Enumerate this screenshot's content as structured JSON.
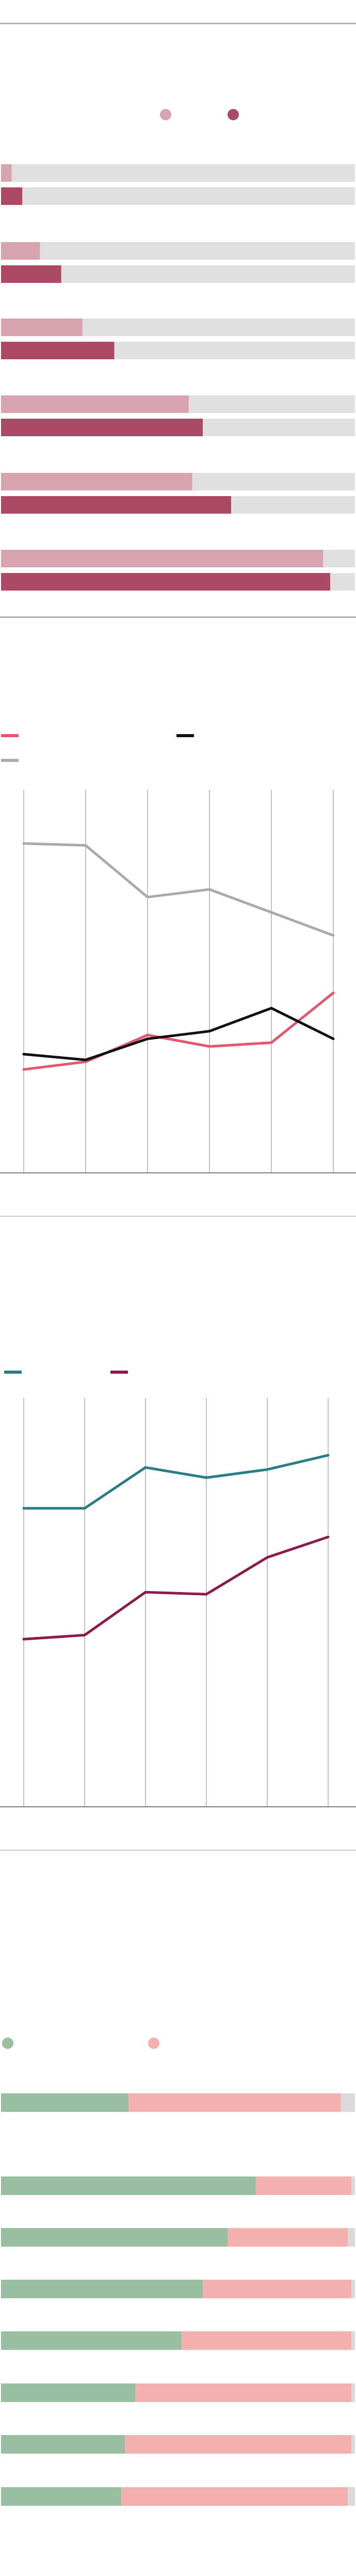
{
  "colors": {
    "light_pink": "#d6a3ae",
    "dark_pink": "#ac4a65",
    "track": "#e0e0e0",
    "red": "#e4566b",
    "black": "#111111",
    "gray": "#aaaaaa",
    "teal": "#2a7d84",
    "maroon": "#8b1b4a",
    "green": "#99bfa3",
    "salmon": "#f4b0ae",
    "light_gray": "#dadada",
    "grid": "#999999"
  },
  "chart_data": [
    {
      "type": "bar",
      "orientation": "horizontal",
      "legend": {
        "placement": "top-center",
        "markers": [
          "circle",
          "circle"
        ]
      },
      "series": [
        {
          "color": "#d6a3ae",
          "values": [
            3,
            11,
            23,
            53,
            54,
            91
          ]
        },
        {
          "color": "#ac4a65",
          "values": [
            6,
            17,
            32,
            57,
            65,
            93
          ]
        }
      ],
      "xlim": [
        0,
        100
      ],
      "grid": false
    },
    {
      "type": "line",
      "legend": {
        "placement": "top-left"
      },
      "x": [
        0,
        1,
        2,
        3,
        4,
        5
      ],
      "series": [
        {
          "color": "#e4566b",
          "values": [
            27,
            29,
            36,
            33,
            34,
            47
          ]
        },
        {
          "color": "#111111",
          "values": [
            31,
            29.5,
            35,
            37,
            43,
            35
          ]
        },
        {
          "color": "#aaaaaa",
          "values": [
            86,
            85.5,
            72,
            74,
            68,
            62
          ]
        }
      ],
      "ylim": [
        0,
        100
      ],
      "grid": "vertical"
    },
    {
      "type": "line",
      "legend": {
        "placement": "top-left"
      },
      "x": [
        0,
        1,
        2,
        3,
        4,
        5
      ],
      "series": [
        {
          "color": "#2a7d84",
          "values": [
            73,
            73,
            83,
            80.5,
            82.5,
            86
          ]
        },
        {
          "color": "#8b1b4a",
          "values": [
            41,
            42,
            52.5,
            52,
            61,
            66
          ]
        }
      ],
      "ylim": [
        0,
        100
      ],
      "grid": "vertical"
    },
    {
      "type": "bar",
      "orientation": "horizontal",
      "stacked": true,
      "legend": {
        "placement": "top-left",
        "markers": [
          "circle",
          "circle"
        ]
      },
      "series": [
        {
          "color": "#99bfa3",
          "values": [
            36,
            72,
            64,
            57,
            51,
            38,
            35,
            34
          ]
        },
        {
          "color": "#f4b0ae",
          "values": [
            60,
            27,
            34,
            42,
            48,
            61,
            64,
            64
          ]
        },
        {
          "color": "#dadada",
          "values": [
            4,
            1,
            2,
            1,
            1,
            1,
            1,
            2
          ]
        }
      ],
      "xlim": [
        0,
        100
      ],
      "grid": false
    }
  ]
}
